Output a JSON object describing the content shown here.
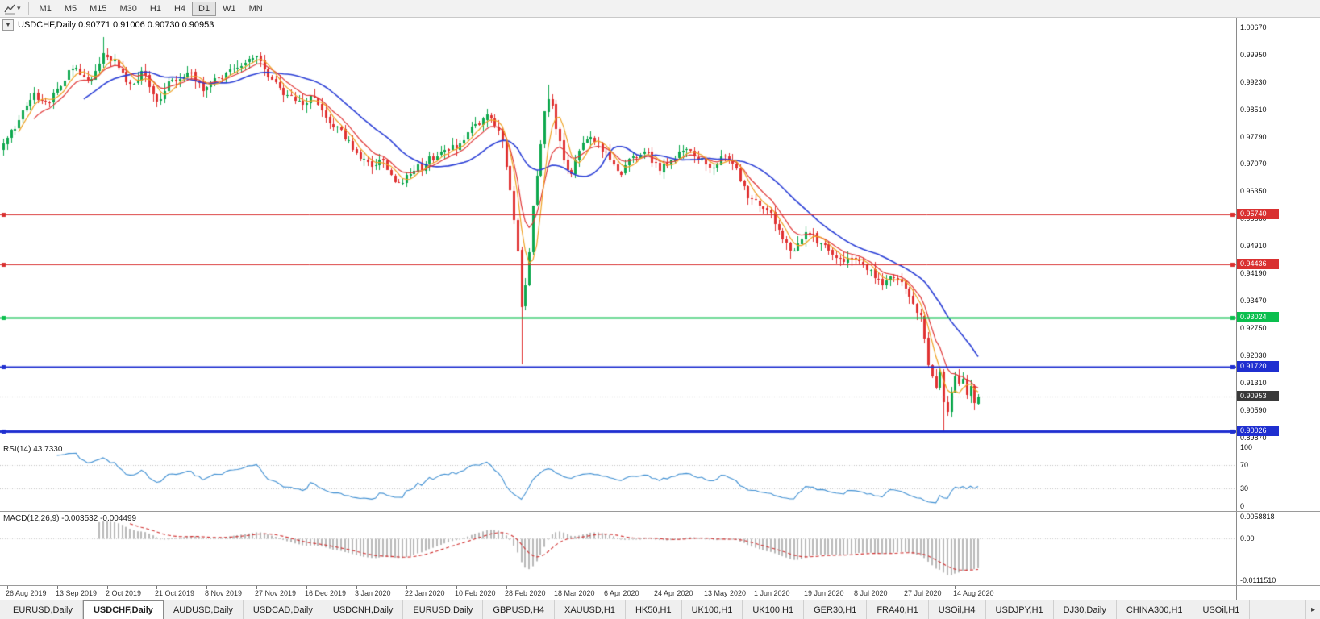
{
  "icons": {
    "caret_down": "▾",
    "collapse_chart": "▼",
    "tab_scroll_right": "▸"
  },
  "toolbar": {
    "timeframes": [
      "M1",
      "M5",
      "M15",
      "M30",
      "H1",
      "H4",
      "D1",
      "W1",
      "MN"
    ],
    "active_timeframe": "D1"
  },
  "chart": {
    "title": "USDCHF,Daily",
    "ohlc": {
      "open": "0.90771",
      "high": "0.91006",
      "low": "0.90730",
      "close": "0.90953"
    },
    "current_price": "0.90953",
    "current_price_badge_color": "#3a3a3a",
    "price_axis_labels": [
      "1.00670",
      "0.99950",
      "0.99230",
      "0.98510",
      "0.97790",
      "0.97070",
      "0.96350",
      "0.95630",
      "0.94910",
      "0.94190",
      "0.93470",
      "0.92750",
      "0.92030",
      "0.91310",
      "0.90590",
      "0.89870"
    ],
    "date_axis_labels": [
      "26 Aug 2019",
      "13 Sep 2019",
      "2 Oct 2019",
      "21 Oct 2019",
      "8 Nov 2019",
      "27 Nov 2019",
      "16 Dec 2019",
      "3 Jan 2020",
      "22 Jan 2020",
      "10 Feb 2020",
      "28 Feb 2020",
      "18 Mar 2020",
      "6 Apr 2020",
      "24 Apr 2020",
      "13 May 2020",
      "1 Jun 2020",
      "19 Jun 2020",
      "8 Jul 2020",
      "27 Jul 2020",
      "14 Aug 2020"
    ],
    "levels": [
      {
        "label": "0.95740",
        "price": 0.9574,
        "color": "#d93030",
        "width": 1
      },
      {
        "label": "0.94436",
        "price": 0.94436,
        "color": "#d93030",
        "width": 1
      },
      {
        "label": "0.93024",
        "price": 0.93024,
        "color": "#0bbf4e",
        "width": 2
      },
      {
        "label": "0.91720",
        "price": 0.9172,
        "color": "#1f2fd0",
        "width": 2
      },
      {
        "label": "0.90026",
        "price": 0.90026,
        "color": "#1f2fd0",
        "width": 3
      }
    ]
  },
  "rsi": {
    "label": "RSI(14) 43.7330",
    "period": 14,
    "value": "43.7330",
    "axis": [
      "100",
      "70",
      "30",
      "0"
    ],
    "levels": [
      70,
      30
    ]
  },
  "macd": {
    "label": "MACD(12,26,9) -0.003532 -0.004499",
    "macd_value": "-0.003532",
    "signal_value": "-0.004499",
    "axis": [
      "0.0058818",
      "0.00",
      "-0.0111510"
    ]
  },
  "tabs": {
    "items": [
      "EURUSD,Daily",
      "USDCHF,Daily",
      "AUDUSD,Daily",
      "USDCAD,Daily",
      "USDCNH,Daily",
      "EURUSD,Daily",
      "GBPUSD,H4",
      "XAUUSD,H1",
      "HK50,H1",
      "UK100,H1",
      "UK100,H1",
      "GER30,H1",
      "FRA40,H1",
      "USOil,H4",
      "USDJPY,H1",
      "DJ30,Daily",
      "CHINA300,H1",
      "USOil,H1"
    ],
    "active_index": 1
  },
  "chart_data": {
    "type": "candlestick",
    "symbol": "USDCHF",
    "timeframe": "Daily",
    "title": "USDCHF,Daily 0.90771 0.91006 0.90730 0.90953",
    "bars_visible": 255,
    "label_every_bars": 13,
    "ylim": [
      0.89756,
      1.00922
    ],
    "price_path": [
      [
        0,
        0.976
      ],
      [
        3,
        0.98
      ],
      [
        8,
        0.9895
      ],
      [
        12,
        0.9868
      ],
      [
        14,
        0.9905
      ],
      [
        18,
        0.9958
      ],
      [
        22,
        0.9925
      ],
      [
        26,
        0.9998
      ],
      [
        29,
        0.9982
      ],
      [
        33,
        0.9918
      ],
      [
        36,
        0.9952
      ],
      [
        40,
        0.9872
      ],
      [
        44,
        0.9928
      ],
      [
        48,
        0.9948
      ],
      [
        52,
        0.99
      ],
      [
        56,
        0.9932
      ],
      [
        60,
        0.9958
      ],
      [
        64,
        0.9984
      ],
      [
        67,
        0.9978
      ],
      [
        70,
        0.993
      ],
      [
        74,
        0.9888
      ],
      [
        78,
        0.9862
      ],
      [
        80,
        0.9888
      ],
      [
        84,
        0.983
      ],
      [
        88,
        0.9798
      ],
      [
        92,
        0.9735
      ],
      [
        96,
        0.97
      ],
      [
        98,
        0.9718
      ],
      [
        101,
        0.9678
      ],
      [
        104,
        0.9658
      ],
      [
        107,
        0.9688
      ],
      [
        110,
        0.9708
      ],
      [
        113,
        0.9728
      ],
      [
        116,
        0.9742
      ],
      [
        119,
        0.9762
      ],
      [
        123,
        0.9812
      ],
      [
        126,
        0.9838
      ],
      [
        128,
        0.9808
      ],
      [
        130,
        0.9768
      ],
      [
        131,
        0.97
      ],
      [
        132,
        0.9638
      ],
      [
        133,
        0.956
      ],
      [
        134,
        0.9478
      ],
      [
        135,
        0.933
      ],
      [
        136,
        0.9388
      ],
      [
        137,
        0.9475
      ],
      [
        138,
        0.9598
      ],
      [
        139,
        0.9676
      ],
      [
        140,
        0.9758
      ],
      [
        141,
        0.9845
      ],
      [
        142,
        0.9878
      ],
      [
        143,
        0.9862
      ],
      [
        144,
        0.9798
      ],
      [
        146,
        0.9718
      ],
      [
        148,
        0.968
      ],
      [
        150,
        0.9742
      ],
      [
        153,
        0.9778
      ],
      [
        155,
        0.9762
      ],
      [
        158,
        0.9718
      ],
      [
        161,
        0.968
      ],
      [
        164,
        0.9728
      ],
      [
        168,
        0.9738
      ],
      [
        171,
        0.9688
      ],
      [
        174,
        0.9718
      ],
      [
        177,
        0.9742
      ],
      [
        181,
        0.9718
      ],
      [
        184,
        0.9698
      ],
      [
        187,
        0.9728
      ],
      [
        190,
        0.9708
      ],
      [
        193,
        0.9648
      ],
      [
        194,
        0.9618
      ],
      [
        197,
        0.9598
      ],
      [
        200,
        0.9578
      ],
      [
        203,
        0.9508
      ],
      [
        206,
        0.9478
      ],
      [
        209,
        0.9528
      ],
      [
        213,
        0.9498
      ],
      [
        216,
        0.9468
      ],
      [
        219,
        0.9448
      ],
      [
        222,
        0.9458
      ],
      [
        226,
        0.9428
      ],
      [
        229,
        0.9388
      ],
      [
        232,
        0.9408
      ],
      [
        235,
        0.9378
      ],
      [
        237,
        0.9338
      ],
      [
        239,
        0.9308
      ],
      [
        240,
        0.9248
      ],
      [
        241,
        0.9178
      ],
      [
        242,
        0.9148
      ],
      [
        243,
        0.9118
      ],
      [
        244,
        0.9158
      ],
      [
        245,
        0.9078
      ],
      [
        246,
        0.9055
      ],
      [
        247,
        0.9108
      ],
      [
        248,
        0.9148
      ],
      [
        249,
        0.9128
      ],
      [
        250,
        0.9142
      ],
      [
        251,
        0.9098
      ],
      [
        252,
        0.9122
      ],
      [
        253,
        0.9077
      ],
      [
        254,
        0.90953
      ]
    ],
    "wick_overrides": {
      "26": {
        "high": 1.0041
      },
      "135": {
        "low": 0.918
      },
      "142": {
        "high": 0.9916
      },
      "245": {
        "low": 0.9005
      }
    },
    "moving_averages": [
      {
        "name": "fast",
        "type": "sma",
        "period": 5,
        "color": "#efa020"
      },
      {
        "name": "medium",
        "type": "ema",
        "period": 9,
        "color": "#e03636"
      },
      {
        "name": "slow",
        "type": "sma",
        "period": 22,
        "color": "#2b3fd6"
      }
    ],
    "colors": {
      "candle_up": "#0ea84e",
      "candle_down": "#e03232",
      "rsi_line": "#3f8fd2",
      "macd_histogram": "#b8b8b8",
      "macd_signal": "#d03030",
      "current_price_line": "#b0b0b0"
    },
    "indicators": [
      {
        "name": "RSI",
        "period": 14,
        "value": 43.733,
        "levels": [
          70,
          30
        ],
        "range": [
          0,
          100
        ]
      },
      {
        "name": "MACD",
        "fast": 12,
        "slow": 26,
        "signal": 9,
        "macd_value": -0.003532,
        "signal_value": -0.004499,
        "scale": [
          -0.011151,
          0.0058818
        ]
      }
    ]
  }
}
